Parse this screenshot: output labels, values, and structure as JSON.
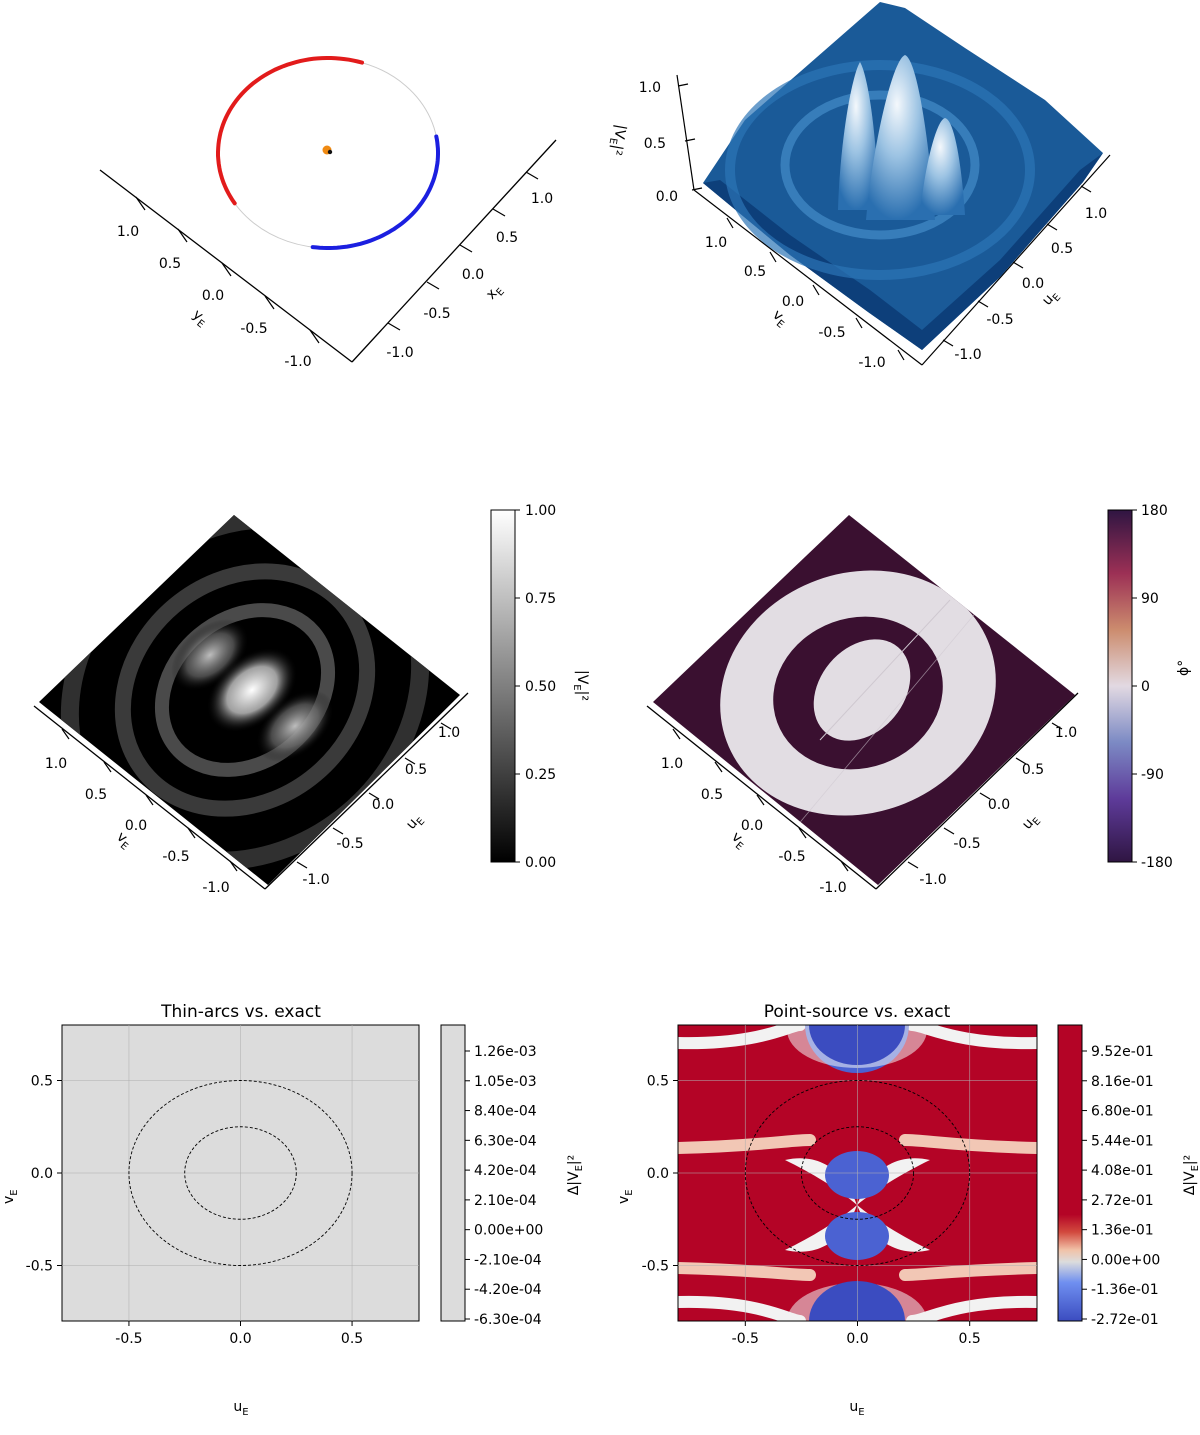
{
  "colors": {
    "prograde": "#e21b1b",
    "retrograde": "#1b1fe0",
    "source": "#f08a12",
    "lens": "#111111"
  },
  "panel_a": {
    "x_ticks": [
      "-1.0",
      "-0.5",
      "0.0",
      "0.5",
      "1.0"
    ],
    "y_ticks": [
      "-1.0",
      "-0.5",
      "0.0",
      "0.5",
      "1.0"
    ],
    "x_label": "x",
    "x_label_sub": "E",
    "y_label": "y",
    "y_label_sub": "E"
  },
  "panel_b": {
    "z_ticks": [
      "0.0",
      "0.5",
      "1.0"
    ],
    "z_label": "|V",
    "z_label_sub": "E",
    "z_label_end": "|²",
    "u_ticks": [
      "-1.0",
      "-0.5",
      "0.0",
      "0.5",
      "1.0"
    ],
    "v_ticks": [
      "-1.0",
      "-0.5",
      "0.0",
      "0.5",
      "1.0"
    ],
    "u_label": "u",
    "u_label_sub": "E",
    "v_label": "v",
    "v_label_sub": "E"
  },
  "panel_c": {
    "u_ticks": [
      "-1.0",
      "-0.5",
      "0.0",
      "0.5",
      "1.0"
    ],
    "v_ticks": [
      "-1.0",
      "-0.5",
      "0.0",
      "0.5",
      "1.0"
    ],
    "u_label": "u",
    "u_label_sub": "E",
    "v_label": "v",
    "v_label_sub": "E",
    "colorbar": {
      "ticks": [
        "1.00",
        "0.75",
        "0.50",
        "0.25",
        "0.00"
      ],
      "label": "|V",
      "label_sub": "E",
      "label_end": "|²"
    }
  },
  "panel_d": {
    "u_ticks": [
      "-1.0",
      "-0.5",
      "0.0",
      "0.5",
      "1.0"
    ],
    "v_ticks": [
      "-1.0",
      "-0.5",
      "0.0",
      "0.5",
      "1.0"
    ],
    "u_label": "u",
    "u_label_sub": "E",
    "v_label": "v",
    "v_label_sub": "E",
    "colorbar": {
      "ticks": [
        "180",
        "90",
        "0",
        "-90",
        "-180"
      ],
      "label": "ϕ°"
    }
  },
  "chart_data": [
    {
      "type": "line",
      "title": "",
      "description_kind": "3D orbit of the source around the lens",
      "x_ticks": [
        -1.0,
        -0.5,
        0.0,
        0.5,
        1.0
      ],
      "y_ticks": [
        -1.0,
        -0.5,
        0.0,
        0.5,
        1.0
      ],
      "xlabel": "xE",
      "ylabel": "yE",
      "ring_radius": 1.0
    },
    {
      "type": "area",
      "title": "",
      "surface": "|VE|² vs (uE, vE)",
      "zlim": [
        0.0,
        1.0
      ],
      "z_ticks": [
        0.0,
        0.5,
        1.0
      ],
      "xlabel": "uE",
      "ylabel": "vE",
      "zlabel": "|VE|²"
    },
    {
      "type": "heatmap",
      "title": "",
      "xlabel": "uE",
      "ylabel": "vE",
      "colorbar_label": "|VE|²",
      "colorbar_range": [
        0.0,
        1.0
      ],
      "colorbar_ticks": [
        0.0,
        0.25,
        0.5,
        0.75,
        1.0
      ]
    },
    {
      "type": "heatmap",
      "title": "",
      "xlabel": "uE",
      "ylabel": "vE",
      "colorbar_label": "ϕ°",
      "colorbar_range": [
        -180,
        180
      ],
      "colorbar_ticks": [
        -180,
        -90,
        0,
        90,
        180
      ]
    },
    {
      "type": "heatmap",
      "title": "Thin-arcs vs. exact",
      "xlabel": "uE",
      "ylabel": "vE",
      "xlim": [
        -0.8,
        0.8
      ],
      "ylim": [
        -0.8,
        0.8
      ],
      "x_ticks": [
        "-0.5",
        "0.0",
        "0.5"
      ],
      "y_ticks": [
        "-0.5",
        "0.0",
        "0.5"
      ],
      "circle_radii": [
        0.25,
        0.5
      ],
      "colorbar_label": "Δ|VE|²",
      "colorbar_ticks": [
        "1.26e-03",
        "1.05e-03",
        "8.40e-04",
        "6.30e-04",
        "4.20e-04",
        "2.10e-04",
        "0.00e+00",
        "-2.10e-04",
        "-4.20e-04",
        "-6.30e-04"
      ]
    },
    {
      "type": "heatmap",
      "title": "Point-source vs. exact",
      "xlabel": "uE",
      "ylabel": "vE",
      "xlim": [
        -0.8,
        0.8
      ],
      "ylim": [
        -0.8,
        0.8
      ],
      "x_ticks": [
        "-0.5",
        "0.0",
        "0.5"
      ],
      "y_ticks": [
        "-0.5",
        "0.0",
        "0.5"
      ],
      "circle_radii": [
        0.25,
        0.5
      ],
      "colorbar_label": "Δ|VE|²",
      "colorbar_ticks": [
        "9.52e-01",
        "8.16e-01",
        "6.80e-01",
        "5.44e-01",
        "4.08e-01",
        "2.72e-01",
        "1.36e-01",
        "0.00e+00",
        "-1.36e-01",
        "-2.72e-01"
      ]
    }
  ]
}
